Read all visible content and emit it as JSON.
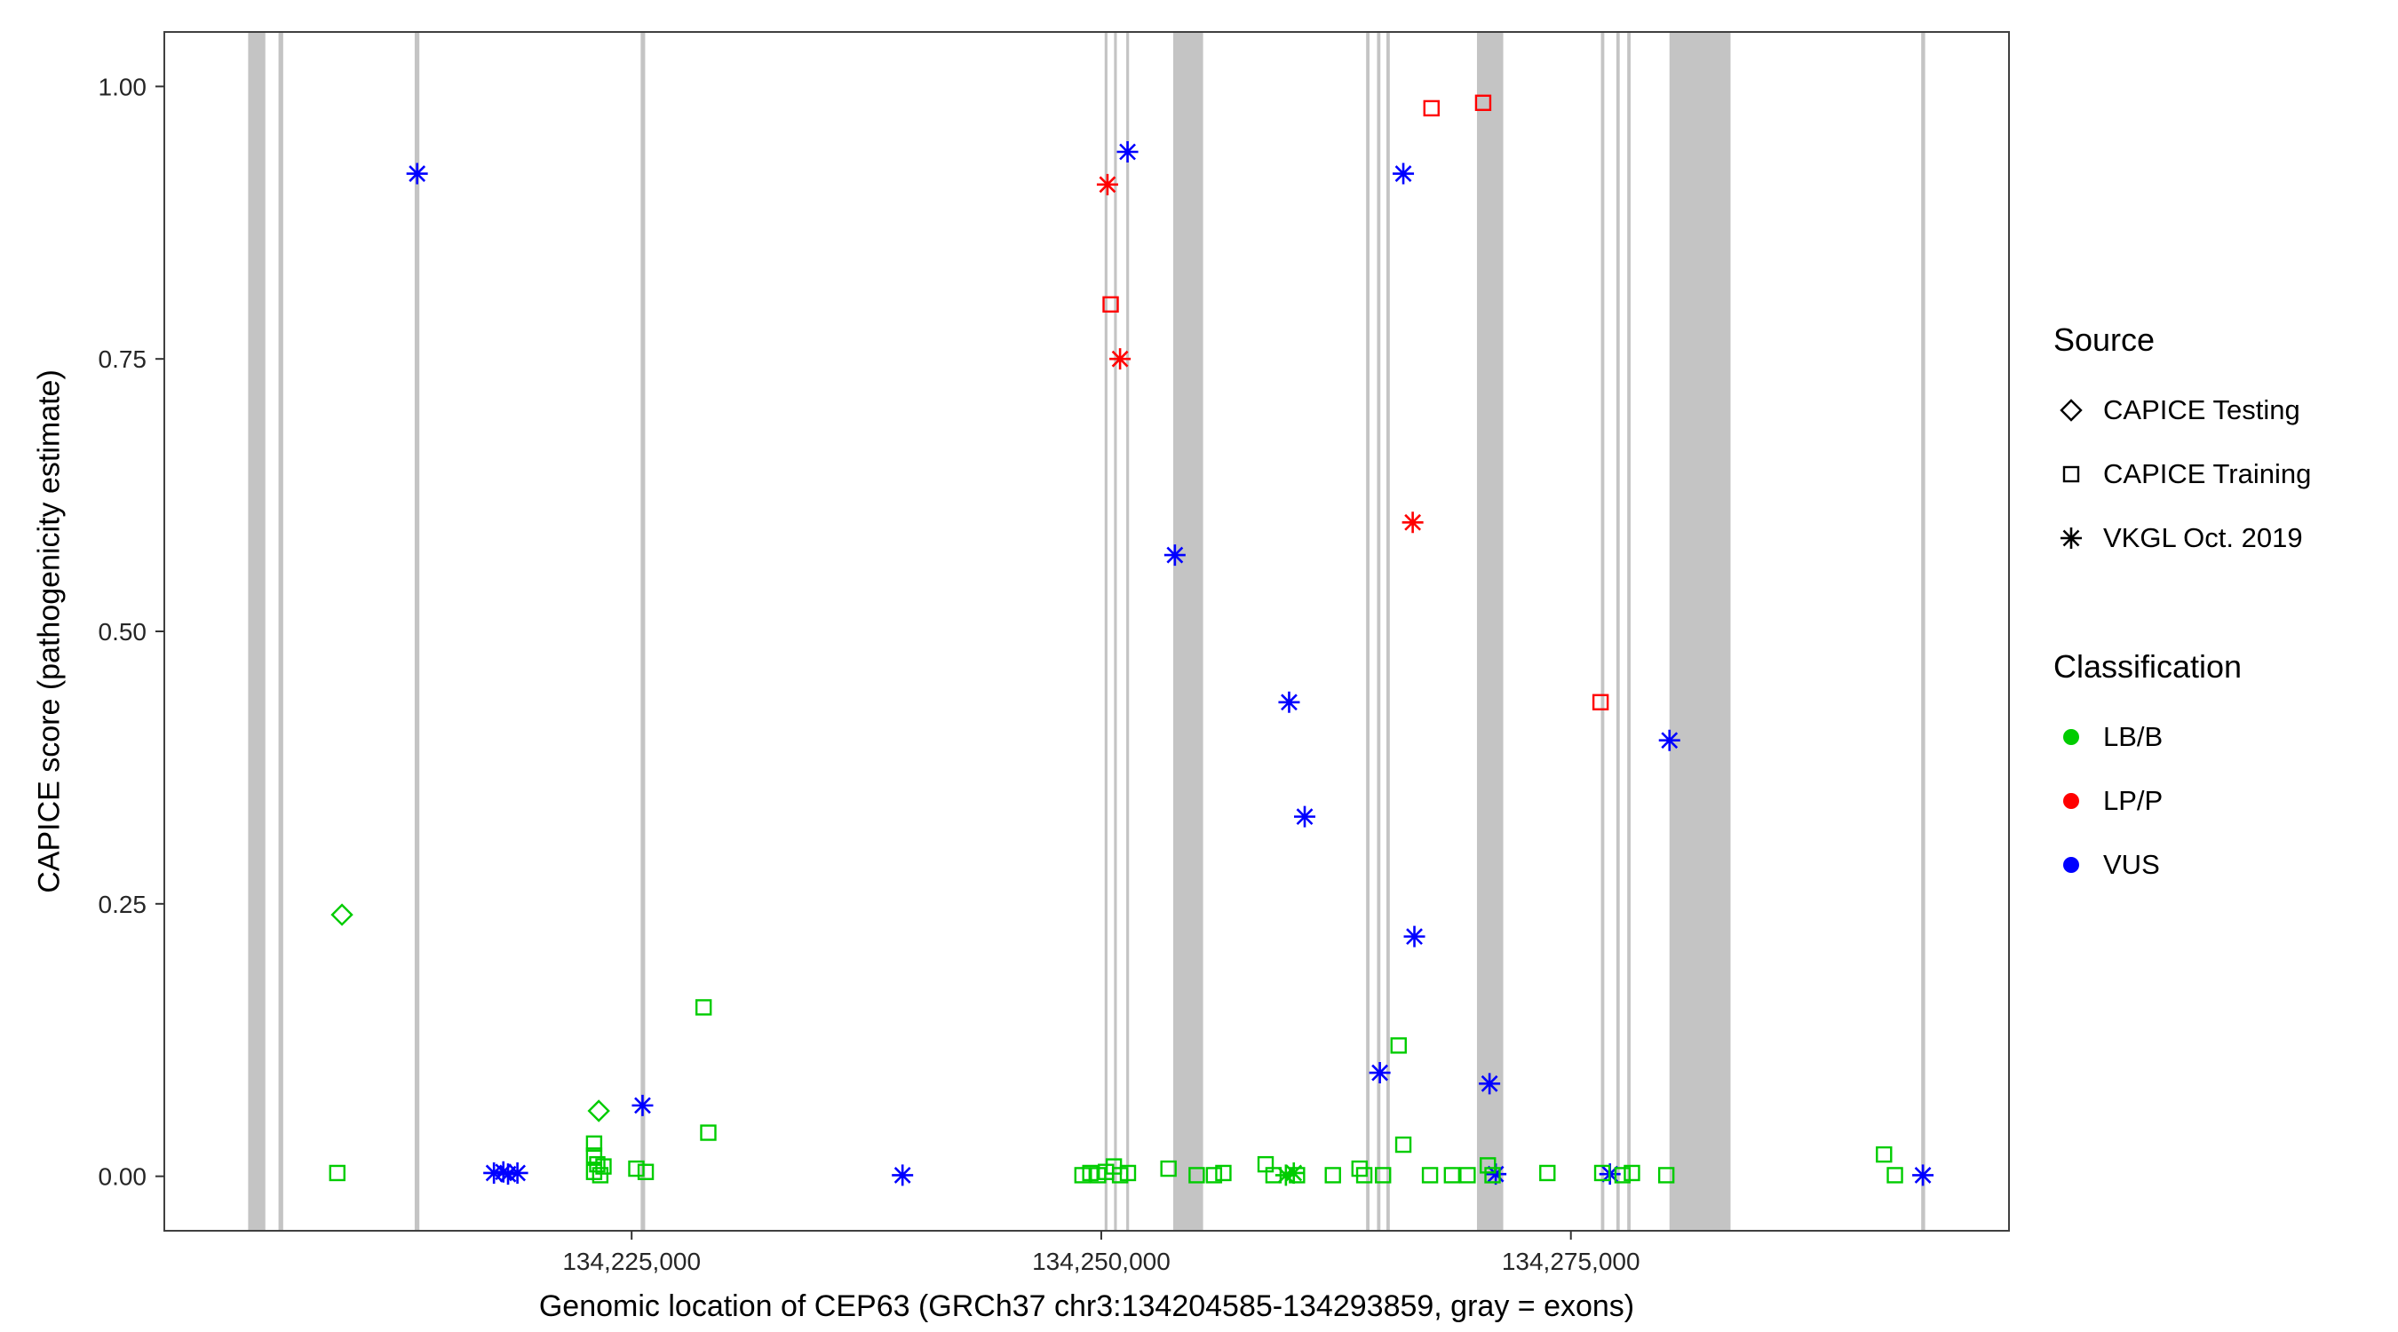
{
  "legend": {
    "source": {
      "title": "Source",
      "items": [
        {
          "shape": "diamond",
          "label": "CAPICE Testing"
        },
        {
          "shape": "square",
          "label": "CAPICE Training"
        },
        {
          "shape": "asterisk",
          "label": "VKGL Oct. 2019"
        }
      ]
    },
    "classification": {
      "title": "Classification",
      "items": [
        {
          "color_key": "LB/B",
          "label": "LB/B"
        },
        {
          "color_key": "LP/P",
          "label": "LP/P"
        },
        {
          "color_key": "VUS",
          "label": "VUS"
        }
      ]
    }
  },
  "chart_data": {
    "type": "scatter",
    "title": "",
    "xlabel": "Genomic location of CEP63 (GRCh37 chr3:134204585-134293859, gray = exons)",
    "ylabel": "CAPICE score (pathogenicity estimate)",
    "xlim": [
      134200121,
      134298323
    ],
    "ylim": [
      -0.05,
      1.05
    ],
    "grid": "off",
    "legend_position": "right",
    "xticks": [
      {
        "value": 134225000,
        "label": "134,225,000"
      },
      {
        "value": 134250000,
        "label": "134,250,000"
      },
      {
        "value": 134275000,
        "label": "134,275,000"
      }
    ],
    "yticks": [
      {
        "value": 0.0,
        "label": "0.00"
      },
      {
        "value": 0.25,
        "label": "0.25"
      },
      {
        "value": 0.5,
        "label": "0.50"
      },
      {
        "value": 0.75,
        "label": "0.75"
      },
      {
        "value": 1.0,
        "label": "1.00"
      }
    ],
    "colors": {
      "LB/B": "#00CC00",
      "LP/P": "#FF0000",
      "VUS": "#0000FF"
    },
    "exon_color": "#C4C4C4",
    "exons": [
      {
        "start": 134204585,
        "end": 134205500
      },
      {
        "start": 134206200,
        "end": 134206450
      },
      {
        "start": 134213450,
        "end": 134213700
      },
      {
        "start": 134225480,
        "end": 134225720
      },
      {
        "start": 134250180,
        "end": 134250330
      },
      {
        "start": 134250680,
        "end": 134250830
      },
      {
        "start": 134251330,
        "end": 134251480
      },
      {
        "start": 134253830,
        "end": 134255420
      },
      {
        "start": 134264100,
        "end": 134264280
      },
      {
        "start": 134264680,
        "end": 134264860
      },
      {
        "start": 134265180,
        "end": 134265360
      },
      {
        "start": 134270000,
        "end": 134271400
      },
      {
        "start": 134276600,
        "end": 134276780
      },
      {
        "start": 134277420,
        "end": 134277600
      },
      {
        "start": 134278000,
        "end": 134278180
      },
      {
        "start": 134280250,
        "end": 134283500
      },
      {
        "start": 134293650,
        "end": 134293859
      }
    ],
    "points": [
      {
        "x": 134213580,
        "y": 0.92,
        "shape": "asterisk",
        "cls": "VUS"
      },
      {
        "x": 134251400,
        "y": 0.94,
        "shape": "asterisk",
        "cls": "VUS"
      },
      {
        "x": 134266080,
        "y": 0.92,
        "shape": "asterisk",
        "cls": "VUS"
      },
      {
        "x": 134253920,
        "y": 0.57,
        "shape": "asterisk",
        "cls": "VUS"
      },
      {
        "x": 134260000,
        "y": 0.435,
        "shape": "asterisk",
        "cls": "VUS"
      },
      {
        "x": 134260830,
        "y": 0.33,
        "shape": "asterisk",
        "cls": "VUS"
      },
      {
        "x": 134266670,
        "y": 0.22,
        "shape": "asterisk",
        "cls": "VUS"
      },
      {
        "x": 134280250,
        "y": 0.4,
        "shape": "asterisk",
        "cls": "VUS"
      },
      {
        "x": 134264830,
        "y": 0.095,
        "shape": "asterisk",
        "cls": "VUS"
      },
      {
        "x": 134270670,
        "y": 0.085,
        "shape": "asterisk",
        "cls": "VUS"
      },
      {
        "x": 134225580,
        "y": 0.065,
        "shape": "asterisk",
        "cls": "VUS"
      },
      {
        "x": 134217670,
        "y": 0.003,
        "shape": "asterisk",
        "cls": "VUS"
      },
      {
        "x": 134218170,
        "y": 0.004,
        "shape": "asterisk",
        "cls": "VUS"
      },
      {
        "x": 134218420,
        "y": 0.002,
        "shape": "asterisk",
        "cls": "VUS"
      },
      {
        "x": 134218920,
        "y": 0.003,
        "shape": "asterisk",
        "cls": "VUS"
      },
      {
        "x": 134239420,
        "y": 0.001,
        "shape": "asterisk",
        "cls": "VUS"
      },
      {
        "x": 134271000,
        "y": 0.002,
        "shape": "asterisk",
        "cls": "VUS"
      },
      {
        "x": 134277080,
        "y": 0.002,
        "shape": "asterisk",
        "cls": "VUS"
      },
      {
        "x": 134293740,
        "y": 0.001,
        "shape": "asterisk",
        "cls": "VUS"
      },
      {
        "x": 134250330,
        "y": 0.91,
        "shape": "asterisk",
        "cls": "LP/P"
      },
      {
        "x": 134250500,
        "y": 0.8,
        "shape": "square",
        "cls": "LP/P"
      },
      {
        "x": 134251000,
        "y": 0.75,
        "shape": "asterisk",
        "cls": "LP/P"
      },
      {
        "x": 134267580,
        "y": 0.98,
        "shape": "square",
        "cls": "LP/P"
      },
      {
        "x": 134270330,
        "y": 0.985,
        "shape": "square",
        "cls": "LP/P"
      },
      {
        "x": 134266580,
        "y": 0.6,
        "shape": "asterisk",
        "cls": "LP/P"
      },
      {
        "x": 134276580,
        "y": 0.435,
        "shape": "square",
        "cls": "LP/P"
      },
      {
        "x": 134209580,
        "y": 0.24,
        "shape": "diamond",
        "cls": "LB/B"
      },
      {
        "x": 134223250,
        "y": 0.06,
        "shape": "diamond",
        "cls": "LB/B"
      },
      {
        "x": 134209330,
        "y": 0.003,
        "shape": "square",
        "cls": "LB/B"
      },
      {
        "x": 134228830,
        "y": 0.155,
        "shape": "square",
        "cls": "LB/B"
      },
      {
        "x": 134229080,
        "y": 0.04,
        "shape": "square",
        "cls": "LB/B"
      },
      {
        "x": 134223000,
        "y": 0.03,
        "shape": "square",
        "cls": "LB/B"
      },
      {
        "x": 134223000,
        "y": 0.019,
        "shape": "square",
        "cls": "LB/B"
      },
      {
        "x": 134223170,
        "y": 0.011,
        "shape": "square",
        "cls": "LB/B"
      },
      {
        "x": 134223000,
        "y": 0.004,
        "shape": "square",
        "cls": "LB/B"
      },
      {
        "x": 134223330,
        "y": 0.001,
        "shape": "square",
        "cls": "LB/B"
      },
      {
        "x": 134223500,
        "y": 0.009,
        "shape": "square",
        "cls": "LB/B"
      },
      {
        "x": 134225250,
        "y": 0.007,
        "shape": "square",
        "cls": "LB/B"
      },
      {
        "x": 134225750,
        "y": 0.004,
        "shape": "square",
        "cls": "LB/B"
      },
      {
        "x": 134249000,
        "y": 0.001,
        "shape": "square",
        "cls": "LB/B"
      },
      {
        "x": 134249420,
        "y": 0.003,
        "shape": "square",
        "cls": "LB/B"
      },
      {
        "x": 134249830,
        "y": 0.001,
        "shape": "square",
        "cls": "LB/B"
      },
      {
        "x": 134250250,
        "y": 0.004,
        "shape": "square",
        "cls": "LB/B"
      },
      {
        "x": 134250670,
        "y": 0.009,
        "shape": "square",
        "cls": "LB/B"
      },
      {
        "x": 134251000,
        "y": 0.001,
        "shape": "square",
        "cls": "LB/B"
      },
      {
        "x": 134251420,
        "y": 0.003,
        "shape": "square",
        "cls": "LB/B"
      },
      {
        "x": 134253580,
        "y": 0.007,
        "shape": "square",
        "cls": "LB/B"
      },
      {
        "x": 134255080,
        "y": 0.001,
        "shape": "square",
        "cls": "LB/B"
      },
      {
        "x": 134256000,
        "y": 0.001,
        "shape": "square",
        "cls": "LB/B"
      },
      {
        "x": 134256500,
        "y": 0.003,
        "shape": "square",
        "cls": "LB/B"
      },
      {
        "x": 134258750,
        "y": 0.011,
        "shape": "square",
        "cls": "LB/B"
      },
      {
        "x": 134259170,
        "y": 0.001,
        "shape": "square",
        "cls": "LB/B"
      },
      {
        "x": 134260420,
        "y": 0.001,
        "shape": "square",
        "cls": "LB/B"
      },
      {
        "x": 134262330,
        "y": 0.001,
        "shape": "square",
        "cls": "LB/B"
      },
      {
        "x": 134263750,
        "y": 0.007,
        "shape": "square",
        "cls": "LB/B"
      },
      {
        "x": 134264000,
        "y": 0.001,
        "shape": "square",
        "cls": "LB/B"
      },
      {
        "x": 134265000,
        "y": 0.001,
        "shape": "square",
        "cls": "LB/B"
      },
      {
        "x": 134265830,
        "y": 0.12,
        "shape": "square",
        "cls": "LB/B"
      },
      {
        "x": 134266080,
        "y": 0.029,
        "shape": "square",
        "cls": "LB/B"
      },
      {
        "x": 134267500,
        "y": 0.001,
        "shape": "square",
        "cls": "LB/B"
      },
      {
        "x": 134268670,
        "y": 0.001,
        "shape": "square",
        "cls": "LB/B"
      },
      {
        "x": 134269500,
        "y": 0.001,
        "shape": "square",
        "cls": "LB/B"
      },
      {
        "x": 134270580,
        "y": 0.01,
        "shape": "square",
        "cls": "LB/B"
      },
      {
        "x": 134270830,
        "y": 0.001,
        "shape": "square",
        "cls": "LB/B"
      },
      {
        "x": 134273750,
        "y": 0.003,
        "shape": "square",
        "cls": "LB/B"
      },
      {
        "x": 134276670,
        "y": 0.003,
        "shape": "square",
        "cls": "LB/B"
      },
      {
        "x": 134277750,
        "y": 0.001,
        "shape": "square",
        "cls": "LB/B"
      },
      {
        "x": 134278250,
        "y": 0.003,
        "shape": "square",
        "cls": "LB/B"
      },
      {
        "x": 134280080,
        "y": 0.001,
        "shape": "square",
        "cls": "LB/B"
      },
      {
        "x": 134291670,
        "y": 0.02,
        "shape": "square",
        "cls": "LB/B"
      },
      {
        "x": 134292250,
        "y": 0.001,
        "shape": "square",
        "cls": "LB/B"
      },
      {
        "x": 134259830,
        "y": 0.001,
        "shape": "asterisk",
        "cls": "LB/B"
      },
      {
        "x": 134260250,
        "y": 0.003,
        "shape": "asterisk",
        "cls": "LB/B"
      }
    ]
  }
}
